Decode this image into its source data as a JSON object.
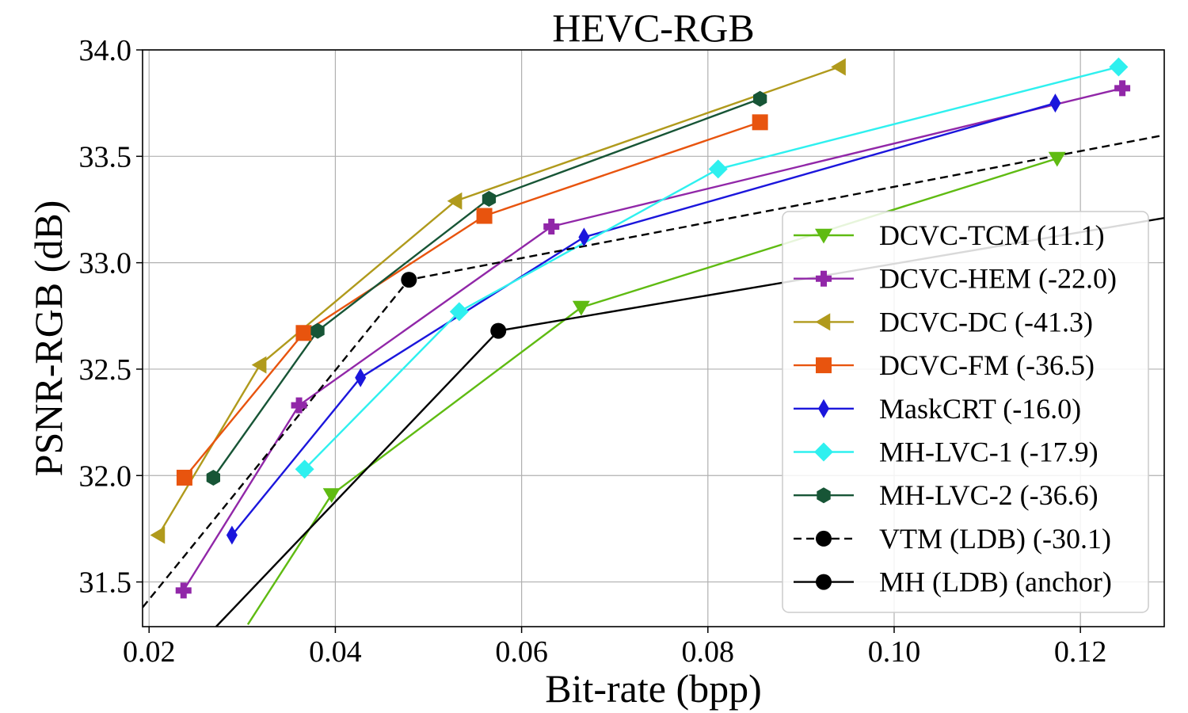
{
  "chart_data": {
    "type": "line",
    "title": "HEVC-RGB",
    "xlabel": "Bit-rate (bpp)",
    "ylabel": "PSNR-RGB (dB)",
    "xlim": [
      0.0193,
      0.129
    ],
    "ylim": [
      31.29,
      34.0
    ],
    "xticks": [
      "0.02",
      "0.04",
      "0.06",
      "0.08",
      "0.10",
      "0.12"
    ],
    "xtick_values": [
      0.02,
      0.04,
      0.06,
      0.08,
      0.1,
      0.12
    ],
    "yticks": [
      "31.5",
      "32.0",
      "32.5",
      "33.0",
      "33.5",
      "34.0"
    ],
    "ytick_values": [
      31.5,
      32.0,
      32.5,
      33.0,
      33.5,
      34.0
    ],
    "grid": true,
    "legend_position": "lower-right",
    "series": [
      {
        "name": "DCVC-TCM (11.1)",
        "color": "#5fbb12",
        "marker": "triangle-down",
        "dash": "solid",
        "x": [
          0.0306,
          0.0396,
          0.0664,
          0.1175
        ],
        "y": [
          31.3,
          31.91,
          32.79,
          33.49
        ]
      },
      {
        "name": "DCVC-HEM (-22.0)",
        "color": "#9127a8",
        "marker": "plus",
        "dash": "solid",
        "x": [
          0.0237,
          0.0361,
          0.0632,
          0.1245
        ],
        "y": [
          31.46,
          32.33,
          33.17,
          33.82
        ]
      },
      {
        "name": "DCVC-DC (-41.3)",
        "color": "#b09a1c",
        "marker": "triangle-left",
        "dash": "solid",
        "x": [
          0.021,
          0.0319,
          0.0529,
          0.0941
        ],
        "y": [
          31.72,
          32.52,
          33.29,
          33.92
        ]
      },
      {
        "name": "DCVC-FM (-36.5)",
        "color": "#e8540e",
        "marker": "square",
        "dash": "solid",
        "x": [
          0.0238,
          0.0366,
          0.056,
          0.0856
        ],
        "y": [
          31.99,
          32.67,
          33.22,
          33.66
        ]
      },
      {
        "name": "MaskCRT (-16.0)",
        "color": "#1b16dc",
        "marker": "thin-diamond",
        "dash": "solid",
        "x": [
          0.0289,
          0.0427,
          0.0667,
          0.1173
        ],
        "y": [
          31.72,
          32.46,
          33.12,
          33.75
        ]
      },
      {
        "name": "MH-LVC-1 (-17.9)",
        "color": "#2ef0ef",
        "marker": "diamond",
        "dash": "solid",
        "x": [
          0.0367,
          0.0533,
          0.0811,
          0.1241
        ],
        "y": [
          32.03,
          32.77,
          33.44,
          33.92
        ]
      },
      {
        "name": "MH-LVC-2 (-36.6)",
        "color": "#175536",
        "marker": "hexagon",
        "dash": "solid",
        "x": [
          0.0269,
          0.0381,
          0.0565,
          0.0856
        ],
        "y": [
          31.99,
          32.68,
          33.3,
          33.77
        ]
      },
      {
        "name": "VTM (LDB) (-30.1)",
        "color": "#000000",
        "marker": "circle",
        "dash": "dashed",
        "x": [
          0.0193,
          0.0479,
          0.129
        ],
        "y": [
          31.38,
          32.92,
          33.6
        ]
      },
      {
        "name": "MH (LDB) (anchor)",
        "color": "#000000",
        "marker": "circle",
        "dash": "solid",
        "x": [
          0.0272,
          0.0575,
          0.129
        ],
        "y": [
          31.29,
          32.68,
          33.21
        ]
      }
    ],
    "visible_markers": {
      "DCVC-TCM (11.1)": [
        1,
        2,
        3
      ],
      "DCVC-HEM (-22.0)": [
        0,
        1,
        2,
        3
      ],
      "DCVC-DC (-41.3)": [
        0,
        1,
        2,
        3
      ],
      "DCVC-FM (-36.5)": [
        0,
        1,
        2,
        3
      ],
      "MaskCRT (-16.0)": [
        0,
        1,
        2,
        3
      ],
      "MH-LVC-1 (-17.9)": [
        0,
        1,
        2,
        3
      ],
      "MH-LVC-2 (-36.6)": [
        0,
        1,
        2,
        3
      ],
      "VTM (LDB) (-30.1)": [
        1
      ],
      "MH (LDB) (anchor)": [
        1
      ]
    }
  }
}
